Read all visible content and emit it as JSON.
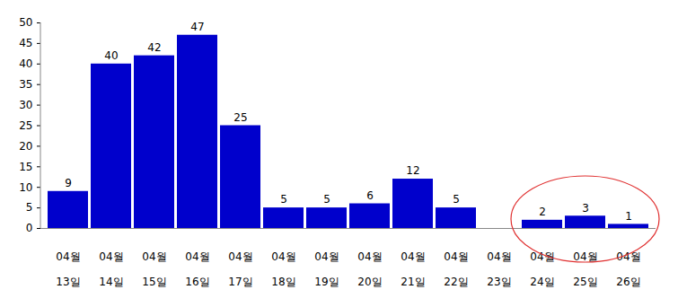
{
  "chart_data": {
    "type": "bar",
    "categories": [
      "04월\n13일",
      "04월\n14일",
      "04월\n15일",
      "04월\n16일",
      "04월\n17일",
      "04월\n18일",
      "04월\n19일",
      "04월\n20일",
      "04월\n21일",
      "04월\n22일",
      "04월\n23일",
      "04월\n24일",
      "04월\n25일",
      "04월\n26일"
    ],
    "values": [
      9,
      40,
      42,
      47,
      25,
      5,
      5,
      6,
      12,
      5,
      null,
      2,
      3,
      1
    ],
    "color": "#0000cc",
    "ylim": [
      0,
      50
    ],
    "yticks": [
      0,
      5,
      10,
      15,
      20,
      25,
      30,
      35,
      40,
      45,
      50
    ],
    "grid": false,
    "data_labels": true
  }
}
